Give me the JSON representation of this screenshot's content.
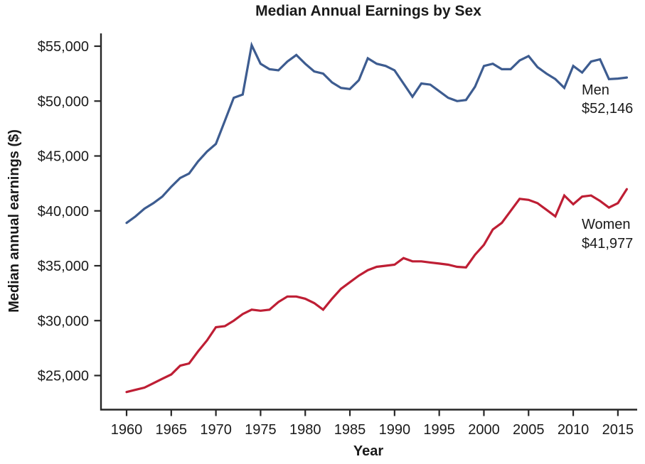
{
  "page": {
    "background": "#ffffff"
  },
  "colors": {
    "men_line": "#3d5c90",
    "women_line": "#be1e34",
    "axis": "#262626",
    "text": "#1a1a1a"
  },
  "chart_data": {
    "type": "line",
    "title": "Median Annual Earnings by Sex",
    "xlabel": "Year",
    "ylabel": "Median annual earnings ($)",
    "grid": false,
    "legend_position": "inline-right-of-line-ends",
    "xlim": [
      1957.1,
      2017.2
    ],
    "ylim": [
      21900,
      56200
    ],
    "x_ticks": [
      1960,
      1965,
      1970,
      1975,
      1980,
      1985,
      1990,
      1995,
      2000,
      2005,
      2010,
      2015
    ],
    "y_ticks": [
      {
        "value": 55000,
        "label": "$55,000"
      },
      {
        "value": 50000,
        "label": "$50,000"
      },
      {
        "value": 45000,
        "label": "$45,000"
      },
      {
        "value": 40000,
        "label": "$40,000"
      },
      {
        "value": 35000,
        "label": "$35,000"
      },
      {
        "value": 30000,
        "label": "$30,000"
      },
      {
        "value": 25000,
        "label": "$25,000"
      }
    ],
    "years": [
      1960,
      1961,
      1962,
      1963,
      1964,
      1965,
      1966,
      1967,
      1968,
      1969,
      1970,
      1971,
      1972,
      1973,
      1974,
      1975,
      1976,
      1977,
      1978,
      1979,
      1980,
      1981,
      1982,
      1983,
      1984,
      1985,
      1986,
      1987,
      1988,
      1989,
      1990,
      1991,
      1992,
      1993,
      1994,
      1995,
      1996,
      1997,
      1998,
      1999,
      2000,
      2001,
      2002,
      2003,
      2004,
      2005,
      2006,
      2007,
      2008,
      2009,
      2010,
      2011,
      2012,
      2013,
      2014,
      2015,
      2016
    ],
    "series": [
      {
        "name": "Men",
        "final_value": "$52,146",
        "color": "#3d5c90",
        "values": [
          38900,
          39500,
          40200,
          40700,
          41300,
          42200,
          43000,
          43400,
          44500,
          45400,
          46100,
          48200,
          50300,
          50600,
          55100,
          53400,
          52900,
          52800,
          53600,
          54200,
          53400,
          52700,
          52500,
          51700,
          51200,
          51100,
          51900,
          53900,
          53400,
          53200,
          52800,
          51600,
          50400,
          51600,
          51500,
          50900,
          50300,
          50000,
          50100,
          51300,
          53200,
          53400,
          52900,
          52900,
          53700,
          54100,
          53100,
          52500,
          52000,
          51200,
          53200,
          52600,
          53600,
          53800,
          52000,
          52050,
          52146
        ]
      },
      {
        "name": "Women",
        "final_value": "$41,977",
        "color": "#be1e34",
        "values": [
          23500,
          23700,
          23900,
          24300,
          24700,
          25100,
          25900,
          26100,
          27200,
          28200,
          29400,
          29500,
          30000,
          30600,
          31000,
          30900,
          31000,
          31700,
          32200,
          32200,
          32000,
          31600,
          31000,
          32000,
          32900,
          33500,
          34100,
          34600,
          34900,
          35000,
          35100,
          35700,
          35400,
          35400,
          35300,
          35200,
          35100,
          34900,
          34850,
          36000,
          36900,
          38300,
          38900,
          40000,
          41100,
          41000,
          40700,
          40100,
          39500,
          41400,
          40600,
          41300,
          41400,
          40900,
          40300,
          40700,
          41977
        ]
      }
    ]
  }
}
